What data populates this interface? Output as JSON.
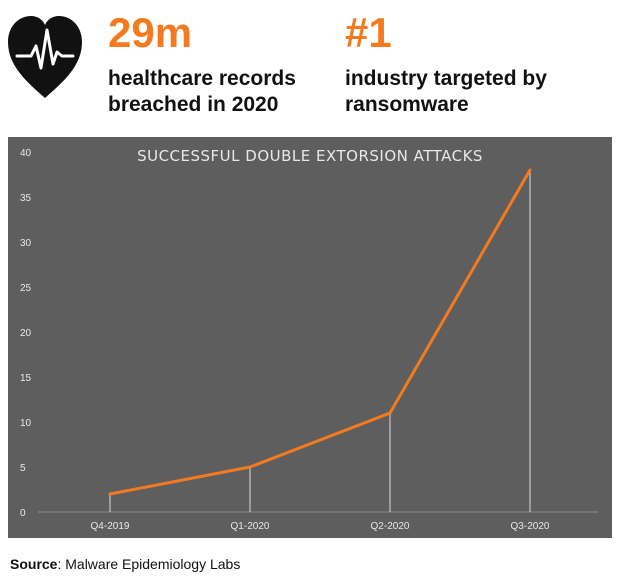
{
  "stats": [
    {
      "value": "29m",
      "line1": "healthcare records",
      "line2": "breached in 2020"
    },
    {
      "value": "#1",
      "line1": "industry targeted by",
      "line2": "ransomware"
    }
  ],
  "icons": {
    "heart": "heart-pulse-icon"
  },
  "colors": {
    "accent": "#f47a20",
    "chart_bg": "#5e5e5e",
    "line": "#f47a20"
  },
  "chart_data": {
    "type": "line",
    "title": "SUCCESSFUL DOUBLE EXTORSION ATTACKS",
    "categories": [
      "Q4-2019",
      "Q1-2020",
      "Q2-2020",
      "Q3-2020"
    ],
    "values": [
      2,
      5,
      11,
      38
    ],
    "ylim": [
      0,
      40
    ],
    "yticks": [
      0,
      5,
      10,
      15,
      20,
      25,
      30,
      35,
      40
    ],
    "grid": false,
    "drop_lines": true
  },
  "source": {
    "label": "Source",
    "text": ": Malware Epidemiology Labs"
  }
}
